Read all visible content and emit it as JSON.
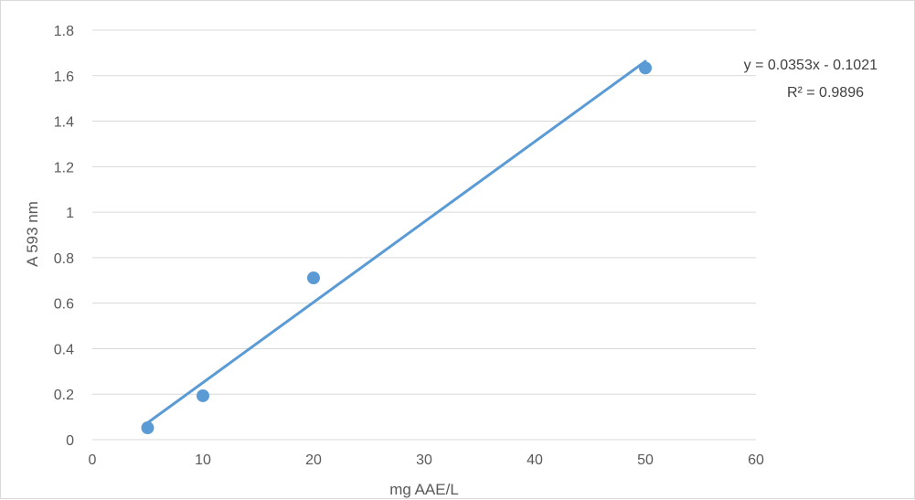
{
  "chart_data": {
    "type": "scatter",
    "title": "",
    "xlabel": "mg AAE/L",
    "ylabel": "A 593 nm",
    "xlim": [
      0,
      60
    ],
    "ylim": [
      0,
      1.8
    ],
    "x_ticks": [
      "0",
      "10",
      "20",
      "30",
      "40",
      "50",
      "60"
    ],
    "y_ticks": [
      "0",
      "0.2",
      "0.4",
      "0.6",
      "0.8",
      "1",
      "1.2",
      "1.4",
      "1.6",
      "1.8"
    ],
    "grid": "horizontal",
    "legend": "none",
    "series": [
      {
        "x": [
          5,
          10,
          20,
          50
        ],
        "y": [
          0.052,
          0.193,
          0.711,
          1.634
        ],
        "color": "#5b9bd5"
      }
    ],
    "trendline": {
      "kind": "linear",
      "slope": 0.0353,
      "intercept": -0.1021,
      "x_range": [
        5,
        50
      ],
      "color": "#5b9bd5",
      "equation_label": "y = 0.0353x - 0.1021",
      "r2_label": "R² = 0.9896"
    }
  }
}
